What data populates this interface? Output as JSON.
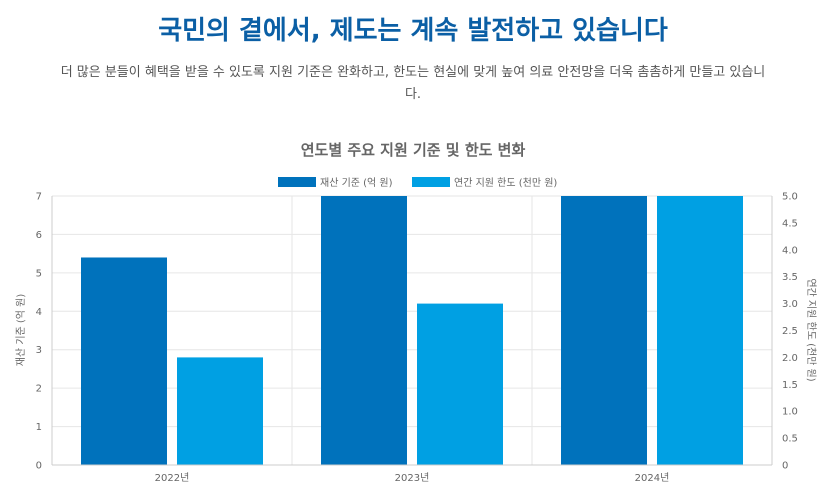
{
  "page": {
    "headline": "국민의 곁에서, 제도는 계속 발전하고 있습니다",
    "subtext": "더 많은 분들이 혜택을 받을 수 있도록 지원 기준은 완화하고, 한도는 현실에 맞게 높여 의료 안전망을 더욱 촘촘하게 만들고 있습니다."
  },
  "colors": {
    "headline": "#0b5fa5",
    "series1": "#0072bc",
    "series2": "#00a0e3"
  },
  "chart_data": {
    "type": "bar",
    "title": "연도별 주요 지원 기준 및 한도 변화",
    "categories": [
      "2022년",
      "2023년",
      "2024년"
    ],
    "series": [
      {
        "name": "재산 기준 (억 원)",
        "axis": "left",
        "values": [
          5.4,
          7.0,
          7.0
        ]
      },
      {
        "name": "연간 지원 한도 (천만 원)",
        "axis": "right",
        "values": [
          2.0,
          3.0,
          5.0
        ]
      }
    ],
    "ylabel": "재산 기준 (억 원)",
    "y2label": "연간 지원 한도 (천만 원)",
    "ylim": [
      0,
      7
    ],
    "y2lim": [
      0,
      5
    ],
    "yticks": [
      "0",
      "1",
      "2",
      "3",
      "4",
      "5",
      "6",
      "7"
    ],
    "y2ticks": [
      "0",
      "0.5",
      "1.0",
      "1.5",
      "2.0",
      "2.5",
      "3.0",
      "3.5",
      "4.0",
      "4.5",
      "5.0"
    ],
    "grid": true,
    "legend": "top"
  }
}
